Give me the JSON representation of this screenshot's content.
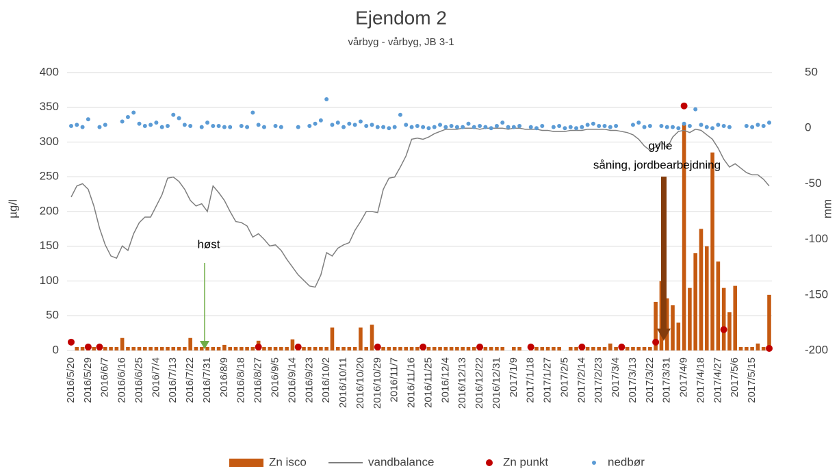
{
  "chart_data": {
    "type": "combo",
    "title": "Ejendom 2",
    "subtitle": "vårbyg - vårbyg, JB 3-1",
    "y_label": "µg/l",
    "y2_label": "mm",
    "categories": [
      "2016/5/20",
      null,
      null,
      "2016/5/29",
      null,
      null,
      "2016/6/7",
      null,
      null,
      "2016/6/16",
      null,
      null,
      "2016/6/25",
      null,
      null,
      "2016/7/4",
      null,
      null,
      "2016/7/13",
      null,
      null,
      "2016/7/22",
      null,
      null,
      "2016/7/31",
      null,
      null,
      "2016/8/9",
      null,
      null,
      "2016/8/18",
      null,
      null,
      "2016/8/27",
      null,
      null,
      "2016/9/5",
      null,
      null,
      "2016/9/14",
      null,
      null,
      "2016/9/23",
      null,
      null,
      "2016/10/2",
      null,
      null,
      "2016/10/11",
      null,
      null,
      "2016/10/20",
      null,
      null,
      "2016/10/29",
      null,
      null,
      "2016/11/7",
      null,
      null,
      "2016/11/16",
      null,
      null,
      "2016/11/25",
      null,
      null,
      "2016/12/4",
      null,
      null,
      "2016/12/13",
      null,
      null,
      "2016/12/22",
      null,
      null,
      "2016/12/31",
      null,
      null,
      "2017/1/9",
      null,
      null,
      "2017/1/18",
      null,
      null,
      "2017/1/27",
      null,
      null,
      "2017/2/5",
      null,
      null,
      "2017/2/14",
      null,
      null,
      "2017/2/23",
      null,
      null,
      "2017/3/4",
      null,
      null,
      "2017/3/13",
      null,
      null,
      "2017/3/22",
      null,
      null,
      "2017/3/31",
      null,
      null,
      "2017/4/9",
      null,
      null,
      "2017/4/18",
      null,
      null,
      "2017/4/27",
      null,
      null,
      "2017/5/6",
      null,
      null,
      "2017/5/15",
      null,
      null,
      null
    ],
    "ylim": [
      0,
      400
    ],
    "yticks": [
      0,
      50,
      100,
      150,
      200,
      250,
      300,
      350,
      400
    ],
    "y2lim": [
      -200,
      50
    ],
    "y2ticks": [
      -200,
      -150,
      -100,
      -50,
      0,
      50
    ],
    "grid": true,
    "legend": "bottom",
    "annotations": [
      {
        "text": "høst"
      },
      {
        "text": "gylle"
      },
      {
        "text": "såning, jordbearbejdning"
      }
    ],
    "series": [
      {
        "name": "Zn isco",
        "type": "bar",
        "axis": "y",
        "color": "#c55a11",
        "values": [
          null,
          5,
          5,
          5,
          5,
          5,
          5,
          5,
          5,
          18,
          5,
          5,
          5,
          5,
          5,
          5,
          5,
          5,
          5,
          5,
          5,
          18,
          5,
          5,
          5,
          5,
          5,
          8,
          5,
          5,
          5,
          5,
          5,
          14,
          5,
          5,
          5,
          5,
          5,
          16,
          5,
          5,
          5,
          5,
          5,
          5,
          33,
          5,
          5,
          5,
          5,
          33,
          5,
          37,
          5,
          5,
          5,
          5,
          5,
          5,
          5,
          5,
          5,
          5,
          5,
          5,
          5,
          5,
          5,
          5,
          5,
          5,
          5,
          5,
          5,
          5,
          5,
          null,
          5,
          5,
          null,
          5,
          5,
          5,
          5,
          5,
          5,
          null,
          5,
          5,
          5,
          5,
          5,
          5,
          5,
          10,
          5,
          5,
          5,
          5,
          5,
          5,
          5,
          70,
          100,
          75,
          65,
          40,
          325,
          90,
          140,
          175,
          150,
          285,
          128,
          90,
          55,
          93,
          5,
          5,
          5,
          10,
          5,
          80
        ]
      },
      {
        "name": "vandbalance",
        "type": "line",
        "axis": "y2",
        "color": "#7f7f7f",
        "values": [
          -62,
          -52,
          -50,
          -55,
          -70,
          -90,
          -105,
          -115,
          -117,
          -106,
          -110,
          -95,
          -85,
          -80,
          -80,
          -70,
          -60,
          -45,
          -44,
          -48,
          -55,
          -65,
          -70,
          -68,
          -75,
          -52,
          -58,
          -65,
          -75,
          -84,
          -85,
          -88,
          -98,
          -95,
          -100,
          -106,
          -105,
          -110,
          -118,
          -125,
          -132,
          -137,
          -142,
          -143,
          -132,
          -112,
          -115,
          -108,
          -105,
          -103,
          -92,
          -84,
          -75,
          -75,
          -76,
          -55,
          -45,
          -44,
          -35,
          -25,
          -10,
          -9,
          -10,
          -8,
          -5,
          -3,
          -1,
          -1,
          -1,
          0,
          0,
          0,
          -1,
          0,
          0,
          0,
          0,
          -1,
          0,
          0,
          -1,
          -1,
          -1,
          -2,
          -2,
          -3,
          -3,
          -3,
          -2,
          -2,
          -2,
          -1,
          -1,
          -1,
          -1,
          -2,
          -2,
          -3,
          -4,
          -6,
          -10,
          -16,
          -20,
          -17,
          -12,
          -18,
          -8,
          -3,
          -2,
          -4,
          -1,
          -2,
          -6,
          -10,
          -18,
          -28,
          -35,
          -32,
          -36,
          -40,
          -42,
          -42,
          -46,
          -52
        ]
      },
      {
        "name": "Zn punkt",
        "type": "scatter",
        "axis": "y",
        "color": "#c00000",
        "values": [
          12,
          null,
          null,
          5,
          null,
          5,
          null,
          null,
          null,
          null,
          null,
          null,
          null,
          null,
          null,
          null,
          null,
          null,
          null,
          null,
          null,
          null,
          null,
          null,
          null,
          null,
          null,
          null,
          null,
          null,
          null,
          null,
          null,
          5,
          null,
          null,
          null,
          null,
          null,
          null,
          5,
          null,
          null,
          null,
          null,
          null,
          null,
          null,
          null,
          null,
          null,
          null,
          null,
          null,
          5,
          null,
          null,
          null,
          null,
          null,
          null,
          null,
          5,
          null,
          null,
          null,
          null,
          null,
          null,
          null,
          null,
          null,
          5,
          null,
          null,
          null,
          null,
          null,
          null,
          null,
          null,
          5,
          null,
          null,
          null,
          null,
          null,
          null,
          null,
          null,
          5,
          null,
          null,
          null,
          null,
          null,
          null,
          5,
          null,
          null,
          null,
          null,
          null,
          12,
          null,
          null,
          null,
          null,
          352,
          null,
          null,
          null,
          null,
          null,
          null,
          30,
          null,
          null,
          null,
          null,
          null,
          null,
          null,
          3
        ]
      },
      {
        "name": "nedbør",
        "type": "scatter",
        "axis": "y2",
        "color": "#5b9bd5",
        "values": [
          2,
          3,
          1,
          8,
          null,
          1,
          3,
          null,
          null,
          6,
          10,
          14,
          4,
          2,
          3,
          5,
          1,
          2,
          12,
          9,
          3,
          2,
          null,
          1,
          5,
          2,
          2,
          1,
          1,
          null,
          2,
          1,
          14,
          3,
          1,
          null,
          2,
          1,
          null,
          null,
          1,
          null,
          2,
          4,
          7,
          26,
          3,
          5,
          1,
          4,
          3,
          6,
          2,
          3,
          1,
          1,
          0,
          1,
          12,
          3,
          1,
          2,
          1,
          0,
          1,
          3,
          1,
          2,
          1,
          1,
          4,
          1,
          2,
          1,
          0,
          2,
          5,
          1,
          1,
          2,
          null,
          1,
          0,
          2,
          null,
          1,
          2,
          0,
          1,
          0,
          1,
          3,
          4,
          2,
          2,
          1,
          2,
          null,
          null,
          3,
          5,
          1,
          2,
          null,
          2,
          1,
          1,
          0,
          4,
          2,
          17,
          3,
          1,
          0,
          3,
          2,
          1,
          null,
          null,
          2,
          1,
          3,
          2,
          5
        ]
      }
    ]
  }
}
